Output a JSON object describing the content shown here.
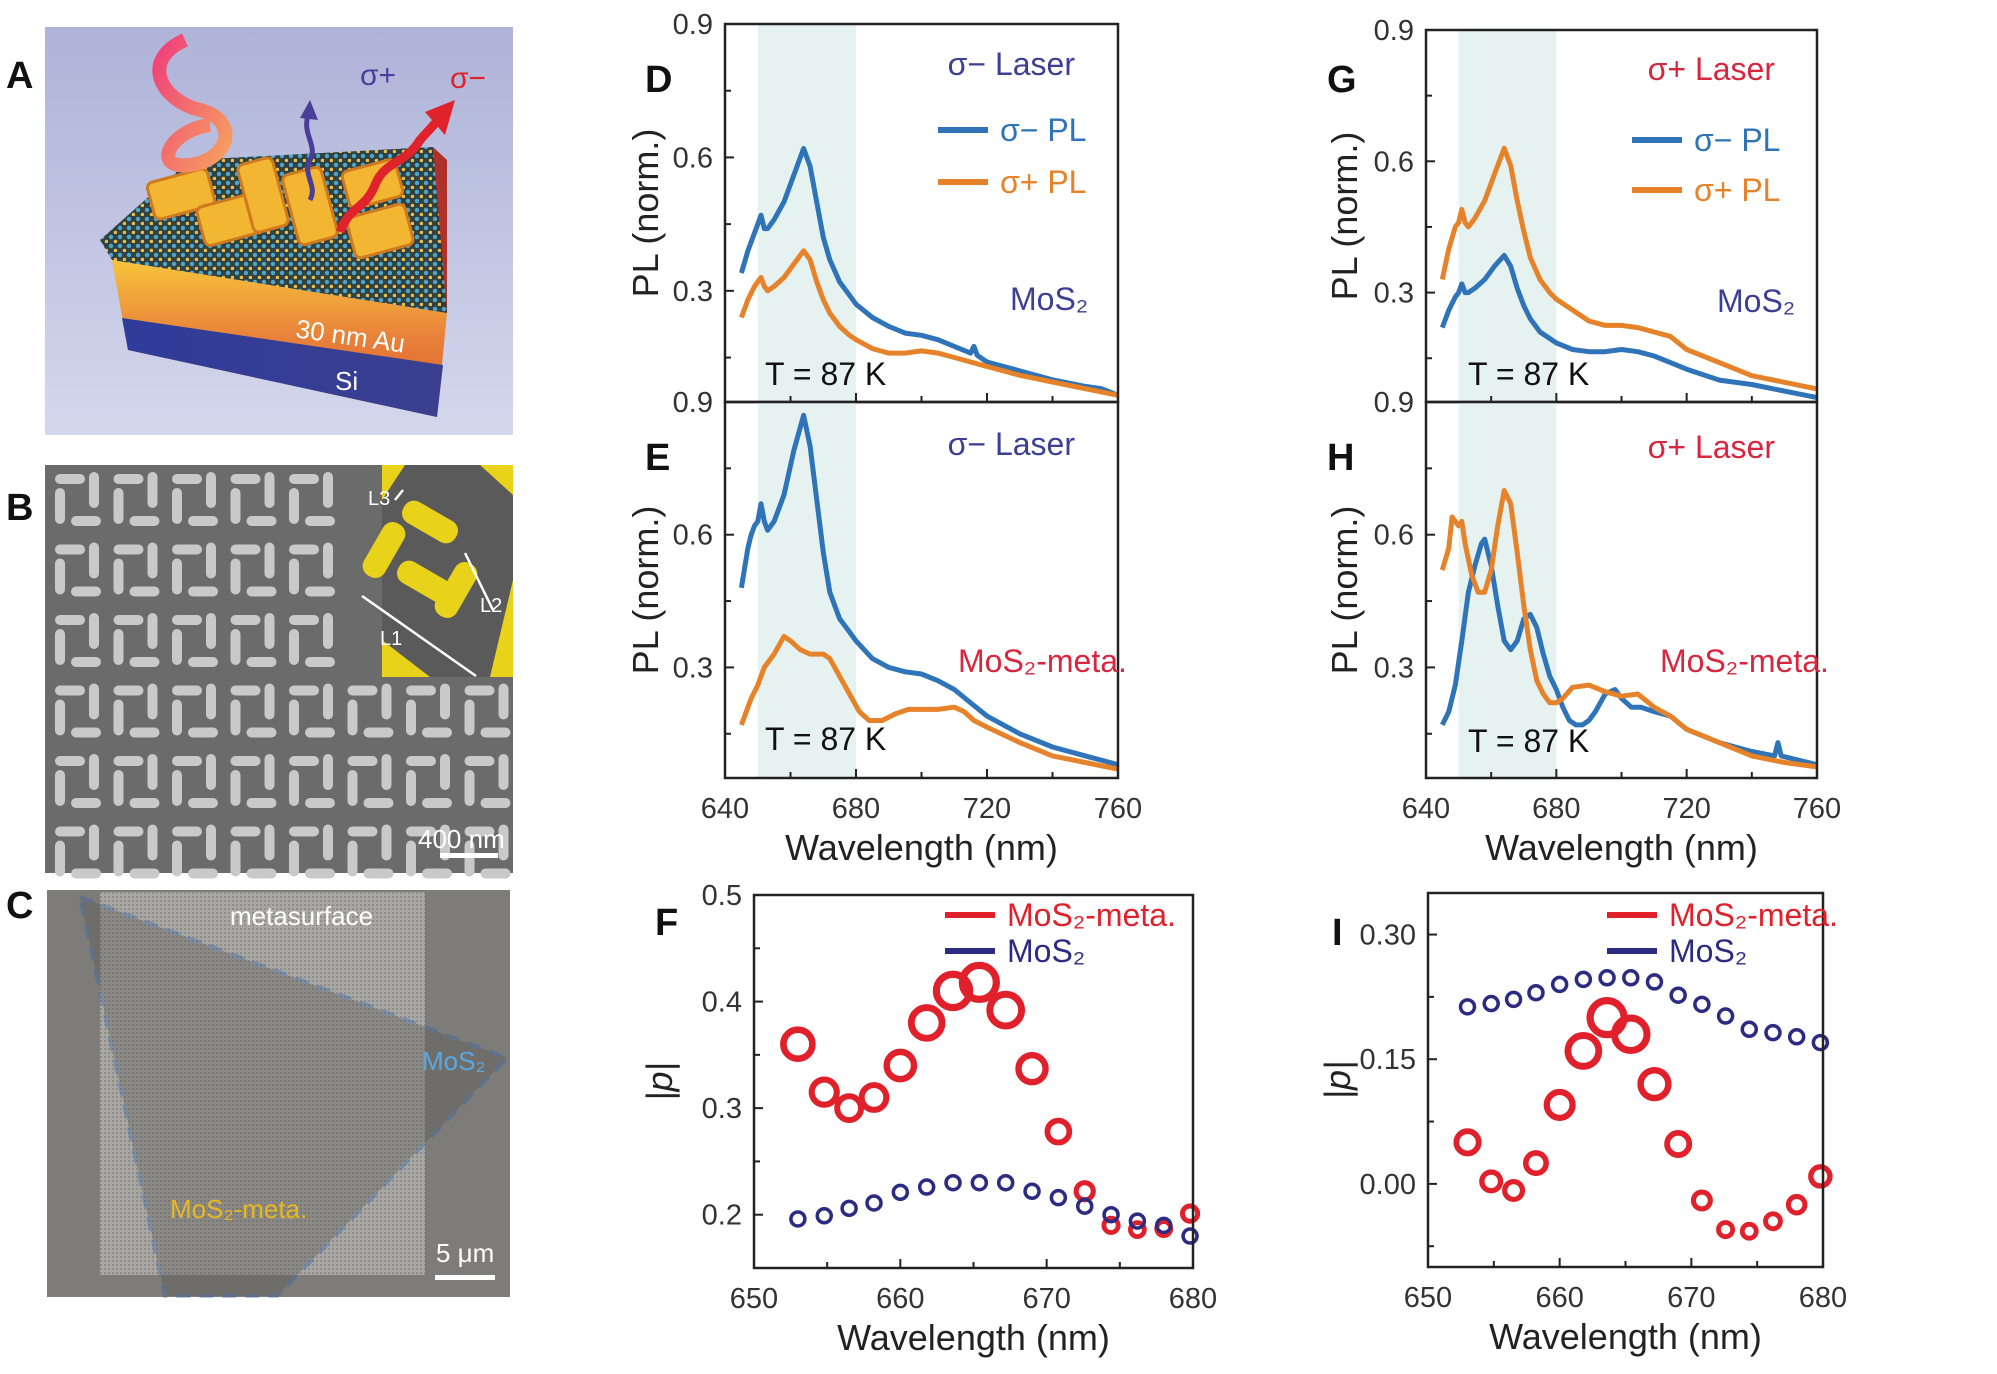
{
  "panels": {
    "A": {
      "label": "A",
      "arrow_plus": "σ+",
      "arrow_minus": "σ−",
      "layer_au": "30 nm Au",
      "layer_si": "Si",
      "colors": {
        "sigma_plus": "#4b3d9a",
        "sigma_minus": "#e0222a"
      }
    },
    "B": {
      "label": "B",
      "dim_l1": "L1",
      "dim_l2": "L2",
      "dim_l3": "L3",
      "scale_bar": "400 nm",
      "colors": {
        "nanostructure": "#e8d21a"
      }
    },
    "C": {
      "label": "C",
      "region_metasurface": "metasurface",
      "region_mos2": "MoS₂",
      "region_mos2_meta": "MoS₂-meta.",
      "scale_bar": "5 μm",
      "colors": {
        "outline": "#2a5fa8",
        "mos2": "#5aa8e0",
        "mos2_meta": "#e8b820"
      }
    }
  },
  "chart_data": [
    {
      "panel": "D",
      "type": "line",
      "xlabel": "",
      "ylabel": "PL (norm.)",
      "xlim": [
        640,
        760
      ],
      "ylim": [
        0.05,
        0.9
      ],
      "xticks": [
        640,
        680,
        720,
        760
      ],
      "xtick_labels": [],
      "yticks": [
        0.3,
        0.6,
        0.9
      ],
      "ytick_labels": [
        "0.3",
        "0.6",
        "0.9"
      ],
      "shaded_range": [
        650,
        680
      ],
      "annotations": {
        "laser": "σ− Laser",
        "sample": "MoS₂",
        "temperature": "T = 87 K"
      },
      "annotation_colors": {
        "laser": "#3b3f95",
        "sample": "#3b3f95"
      },
      "legend": "top-right",
      "series": [
        {
          "name": "σ− PL",
          "color": "#2f74b8",
          "x": [
            645,
            647,
            649,
            650,
            651,
            652,
            653,
            655,
            658,
            661,
            664,
            666,
            668,
            670,
            672,
            675,
            678,
            680,
            685,
            690,
            695,
            700,
            705,
            710,
            715,
            716,
            717,
            720,
            730,
            740,
            750,
            755,
            760
          ],
          "y": [
            0.34,
            0.39,
            0.43,
            0.45,
            0.47,
            0.44,
            0.44,
            0.46,
            0.5,
            0.56,
            0.62,
            0.58,
            0.5,
            0.42,
            0.37,
            0.32,
            0.29,
            0.27,
            0.24,
            0.22,
            0.205,
            0.2,
            0.19,
            0.175,
            0.16,
            0.175,
            0.155,
            0.14,
            0.12,
            0.1,
            0.085,
            0.08,
            0.065
          ]
        },
        {
          "name": "σ+ PL",
          "color": "#e6832a",
          "x": [
            645,
            647,
            649,
            650,
            651,
            652,
            653,
            655,
            658,
            661,
            664,
            666,
            668,
            670,
            672,
            675,
            678,
            680,
            685,
            690,
            695,
            700,
            705,
            710,
            715,
            720,
            730,
            740,
            750,
            760
          ],
          "y": [
            0.24,
            0.28,
            0.31,
            0.32,
            0.33,
            0.31,
            0.3,
            0.31,
            0.33,
            0.36,
            0.39,
            0.37,
            0.32,
            0.28,
            0.25,
            0.22,
            0.2,
            0.19,
            0.17,
            0.16,
            0.16,
            0.165,
            0.16,
            0.15,
            0.14,
            0.13,
            0.11,
            0.095,
            0.08,
            0.065
          ]
        }
      ]
    },
    {
      "panel": "E",
      "type": "line",
      "xlabel": "Wavelength (nm)",
      "ylabel": "PL (norm.)",
      "xlim": [
        640,
        760
      ],
      "ylim": [
        0.05,
        0.9
      ],
      "xticks": [
        640,
        680,
        720,
        760
      ],
      "xtick_labels": [
        "640",
        "680",
        "720",
        "760"
      ],
      "yticks": [
        0.3,
        0.6,
        0.9
      ],
      "ytick_labels": [
        "0.3",
        "0.6",
        "0.9"
      ],
      "shaded_range": [
        650,
        680
      ],
      "annotations": {
        "laser": "σ− Laser",
        "sample": "MoS₂-meta.",
        "temperature": "T = 87 K"
      },
      "annotation_colors": {
        "laser": "#3b3f95",
        "sample": "#d7263d"
      },
      "series": [
        {
          "name": "σ− PL",
          "color": "#2f74b8",
          "x": [
            645,
            647,
            648,
            649,
            650,
            651,
            652,
            653,
            655,
            658,
            661,
            664,
            666,
            668,
            670,
            672,
            675,
            678,
            680,
            685,
            690,
            695,
            700,
            705,
            710,
            715,
            720,
            730,
            740,
            750,
            760
          ],
          "y": [
            0.48,
            0.57,
            0.6,
            0.62,
            0.63,
            0.67,
            0.63,
            0.61,
            0.63,
            0.69,
            0.79,
            0.87,
            0.8,
            0.68,
            0.56,
            0.47,
            0.41,
            0.38,
            0.36,
            0.32,
            0.3,
            0.29,
            0.285,
            0.27,
            0.25,
            0.22,
            0.19,
            0.15,
            0.12,
            0.1,
            0.08
          ]
        },
        {
          "name": "σ+ PL",
          "color": "#e6832a",
          "x": [
            645,
            648,
            650,
            652,
            655,
            658,
            660,
            663,
            666,
            670,
            672,
            675,
            678,
            681,
            684,
            688,
            692,
            696,
            700,
            705,
            710,
            713,
            716,
            720,
            730,
            740,
            750,
            760
          ],
          "y": [
            0.17,
            0.23,
            0.26,
            0.3,
            0.33,
            0.37,
            0.36,
            0.34,
            0.33,
            0.33,
            0.32,
            0.28,
            0.24,
            0.2,
            0.18,
            0.18,
            0.195,
            0.205,
            0.205,
            0.205,
            0.21,
            0.2,
            0.18,
            0.165,
            0.13,
            0.1,
            0.085,
            0.07
          ]
        }
      ]
    },
    {
      "panel": "F",
      "type": "scatter",
      "xlabel": "Wavelength (nm)",
      "ylabel": "|p|",
      "xlim": [
        650,
        680
      ],
      "ylim": [
        0.15,
        0.5
      ],
      "xticks": [
        650,
        660,
        670,
        680
      ],
      "xtick_labels": [
        "650",
        "660",
        "670",
        "680"
      ],
      "yticks": [
        0.2,
        0.3,
        0.4,
        0.5
      ],
      "ytick_labels": [
        "0.2",
        "0.3",
        "0.4",
        "0.5"
      ],
      "legend": "top-right",
      "series": [
        {
          "name": "MoS₂-meta.",
          "color": "#e0202a",
          "x": [
            653,
            654.8,
            656.5,
            658.2,
            660,
            661.8,
            663.6,
            665.4,
            667.2,
            669,
            670.8,
            672.6,
            674.4,
            676.2,
            678,
            679.8
          ],
          "y": [
            0.36,
            0.315,
            0.3,
            0.31,
            0.34,
            0.38,
            0.41,
            0.418,
            0.392,
            0.337,
            0.278,
            0.222,
            0.19,
            0.186,
            0.187,
            0.201
          ]
        },
        {
          "name": "MoS₂",
          "color": "#2b2b82",
          "x": [
            653,
            654.8,
            656.5,
            658.2,
            660,
            661.8,
            663.6,
            665.4,
            667.2,
            669,
            670.8,
            672.6,
            674.4,
            676.2,
            678,
            679.8
          ],
          "y": [
            0.196,
            0.199,
            0.206,
            0.211,
            0.221,
            0.226,
            0.23,
            0.23,
            0.23,
            0.222,
            0.216,
            0.208,
            0.2,
            0.194,
            0.19,
            0.18
          ]
        }
      ]
    },
    {
      "panel": "G",
      "type": "line",
      "xlabel": "",
      "ylabel": "PL (norm.)",
      "xlim": [
        640,
        760
      ],
      "ylim": [
        0.05,
        0.9
      ],
      "xticks": [
        640,
        680,
        720,
        760
      ],
      "xtick_labels": [],
      "yticks": [
        0.3,
        0.6,
        0.9
      ],
      "ytick_labels": [
        "0.3",
        "0.6",
        "0.9"
      ],
      "shaded_range": [
        650,
        680
      ],
      "annotations": {
        "laser": "σ+ Laser",
        "sample": "MoS₂",
        "temperature": "T = 87 K"
      },
      "annotation_colors": {
        "laser": "#d7263d",
        "sample": "#3b3f95"
      },
      "legend": "top-right",
      "series": [
        {
          "name": "σ− PL",
          "color": "#2f74b8",
          "x": [
            645,
            647,
            649,
            650,
            651,
            652,
            653,
            655,
            658,
            661,
            664,
            666,
            668,
            670,
            672,
            675,
            678,
            680,
            685,
            690,
            695,
            700,
            705,
            710,
            715,
            720,
            730,
            740,
            750,
            760
          ],
          "y": [
            0.22,
            0.26,
            0.29,
            0.3,
            0.32,
            0.3,
            0.3,
            0.31,
            0.33,
            0.36,
            0.385,
            0.36,
            0.31,
            0.27,
            0.24,
            0.21,
            0.195,
            0.185,
            0.17,
            0.165,
            0.165,
            0.17,
            0.165,
            0.155,
            0.14,
            0.125,
            0.1,
            0.09,
            0.075,
            0.06
          ]
        },
        {
          "name": "σ+ PL",
          "color": "#e6832a",
          "x": [
            645,
            647,
            649,
            650,
            651,
            652,
            653,
            655,
            658,
            661,
            664,
            666,
            668,
            670,
            672,
            675,
            678,
            680,
            685,
            690,
            695,
            700,
            705,
            710,
            715,
            720,
            730,
            740,
            750,
            760
          ],
          "y": [
            0.33,
            0.4,
            0.45,
            0.46,
            0.49,
            0.46,
            0.45,
            0.47,
            0.51,
            0.57,
            0.63,
            0.59,
            0.51,
            0.44,
            0.38,
            0.33,
            0.3,
            0.285,
            0.26,
            0.235,
            0.225,
            0.225,
            0.22,
            0.21,
            0.2,
            0.17,
            0.14,
            0.11,
            0.095,
            0.08
          ]
        }
      ]
    },
    {
      "panel": "H",
      "type": "line",
      "xlabel": "Wavelength (nm)",
      "ylabel": "PL (norm.)",
      "xlim": [
        640,
        760
      ],
      "ylim": [
        0.05,
        0.9
      ],
      "xticks": [
        640,
        680,
        720,
        760
      ],
      "xtick_labels": [
        "640",
        "680",
        "720",
        "760"
      ],
      "yticks": [
        0.3,
        0.6,
        0.9
      ],
      "ytick_labels": [
        "0.3",
        "0.6",
        "0.9"
      ],
      "shaded_range": [
        650,
        680
      ],
      "annotations": {
        "laser": "σ+ Laser",
        "sample": "MoS₂-meta.",
        "temperature": "T = 87 K"
      },
      "annotation_colors": {
        "laser": "#d7263d",
        "sample": "#d7263d"
      },
      "series": [
        {
          "name": "σ− PL",
          "color": "#2f74b8",
          "x": [
            645,
            647,
            649,
            651,
            653,
            655,
            657,
            658,
            660,
            662,
            664,
            666,
            668,
            670,
            672,
            674,
            676,
            678,
            680,
            682,
            684,
            686,
            688,
            690,
            692,
            695,
            698,
            700,
            703,
            706,
            710,
            715,
            720,
            730,
            740,
            747,
            748,
            749,
            760
          ],
          "y": [
            0.17,
            0.2,
            0.26,
            0.36,
            0.47,
            0.53,
            0.58,
            0.59,
            0.53,
            0.44,
            0.36,
            0.34,
            0.36,
            0.41,
            0.42,
            0.39,
            0.33,
            0.28,
            0.25,
            0.21,
            0.18,
            0.17,
            0.17,
            0.18,
            0.2,
            0.24,
            0.25,
            0.23,
            0.21,
            0.21,
            0.2,
            0.19,
            0.16,
            0.13,
            0.11,
            0.1,
            0.13,
            0.1,
            0.08
          ]
        },
        {
          "name": "σ+ PL",
          "color": "#e6832a",
          "x": [
            645,
            647,
            648,
            650,
            651,
            652,
            654,
            656,
            658,
            660,
            662,
            664,
            666,
            668,
            670,
            672,
            674,
            676,
            678,
            680,
            682,
            685,
            690,
            695,
            700,
            705,
            710,
            715,
            720,
            730,
            740,
            750,
            760
          ],
          "y": [
            0.52,
            0.57,
            0.64,
            0.62,
            0.63,
            0.58,
            0.51,
            0.47,
            0.47,
            0.52,
            0.62,
            0.7,
            0.67,
            0.56,
            0.44,
            0.34,
            0.27,
            0.24,
            0.22,
            0.22,
            0.23,
            0.255,
            0.26,
            0.245,
            0.235,
            0.24,
            0.21,
            0.19,
            0.16,
            0.13,
            0.1,
            0.085,
            0.075
          ]
        }
      ]
    },
    {
      "panel": "I",
      "type": "scatter",
      "xlabel": "Wavelength (nm)",
      "ylabel": "|p|",
      "xlim": [
        650,
        680
      ],
      "ylim": [
        -0.1,
        0.35
      ],
      "xticks": [
        650,
        660,
        670,
        680
      ],
      "xtick_labels": [
        "650",
        "660",
        "670",
        "680"
      ],
      "yticks": [
        0.0,
        0.15,
        0.3
      ],
      "ytick_labels": [
        "0.00",
        "0.15",
        "0.30"
      ],
      "legend": "top-right",
      "series": [
        {
          "name": "MoS₂-meta.",
          "color": "#e0202a",
          "x": [
            653,
            654.8,
            656.5,
            658.2,
            660,
            661.8,
            663.6,
            665.4,
            667.2,
            669,
            670.8,
            672.6,
            674.4,
            676.2,
            678,
            679.8
          ],
          "y": [
            0.05,
            0.003,
            -0.008,
            0.025,
            0.095,
            0.16,
            0.2,
            0.18,
            0.12,
            0.048,
            -0.02,
            -0.055,
            -0.057,
            -0.045,
            -0.025,
            0.009
          ]
        },
        {
          "name": "MoS₂",
          "color": "#2b2b82",
          "x": [
            653,
            654.8,
            656.5,
            658.2,
            660,
            661.8,
            663.6,
            665.4,
            667.2,
            669,
            670.8,
            672.6,
            674.4,
            676.2,
            678,
            679.8
          ],
          "y": [
            0.213,
            0.217,
            0.222,
            0.23,
            0.24,
            0.246,
            0.248,
            0.248,
            0.243,
            0.227,
            0.216,
            0.202,
            0.186,
            0.182,
            0.177,
            0.17
          ]
        }
      ]
    }
  ]
}
